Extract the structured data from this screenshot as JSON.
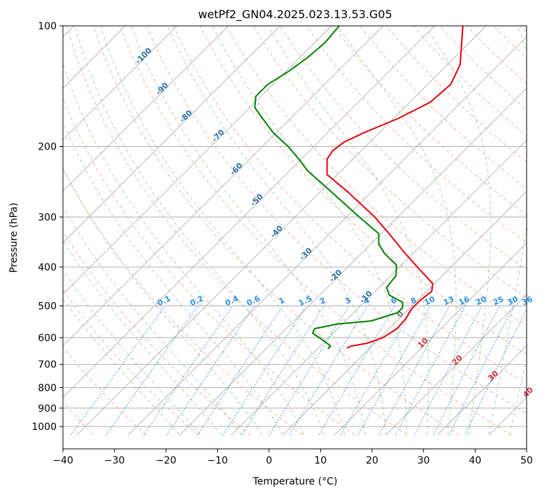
{
  "chart_data": {
    "type": "line",
    "subtype": "skew-T log-P diagram",
    "title": "wetPf2_GN04.2025.023.13.53.G05",
    "xlabel": "Temperature (°C)",
    "ylabel": "Pressure (hPa)",
    "xlim": [
      -40,
      50
    ],
    "ylim_hpa": [
      1050,
      100
    ],
    "y_scale": "log",
    "x_ticks": [
      -40,
      -30,
      -20,
      -10,
      0,
      10,
      20,
      30,
      40,
      50
    ],
    "x_tick_labels": [
      "−40",
      "−30",
      "−20",
      "−10",
      "0",
      "10",
      "20",
      "30",
      "40",
      "50"
    ],
    "y_ticks": [
      100,
      200,
      300,
      400,
      500,
      600,
      700,
      800,
      900,
      1000
    ],
    "y_tick_labels": [
      "100",
      "200",
      "300",
      "400",
      "500",
      "600",
      "700",
      "800",
      "900",
      "1000"
    ],
    "grid": true,
    "series": [
      {
        "role": "temperature",
        "color": "#e8000b",
        "points": [
          {
            "p": 637,
            "t": -4.5
          },
          {
            "p": 630,
            "t": -4.0
          },
          {
            "p": 620,
            "t": -1.5
          },
          {
            "p": 600,
            "t": 0.5
          },
          {
            "p": 570,
            "t": 1.5
          },
          {
            "p": 540,
            "t": 1.3
          },
          {
            "p": 510,
            "t": 0.5
          },
          {
            "p": 485,
            "t": 0.5
          },
          {
            "p": 460,
            "t": 1.0
          },
          {
            "p": 440,
            "t": -0.3
          },
          {
            "p": 400,
            "t": -6.5
          },
          {
            "p": 370,
            "t": -11.5
          },
          {
            "p": 330,
            "t": -18.5
          },
          {
            "p": 300,
            "t": -24.5
          },
          {
            "p": 260,
            "t": -34.5
          },
          {
            "p": 235,
            "t": -42.0
          },
          {
            "p": 215,
            "t": -45.0
          },
          {
            "p": 205,
            "t": -45.5
          },
          {
            "p": 195,
            "t": -45.0
          },
          {
            "p": 185,
            "t": -43.0
          },
          {
            "p": 170,
            "t": -39.0
          },
          {
            "p": 155,
            "t": -36.0
          },
          {
            "p": 140,
            "t": -35.5
          },
          {
            "p": 125,
            "t": -37.5
          },
          {
            "p": 110,
            "t": -41.5
          },
          {
            "p": 100,
            "t": -44.5
          }
        ]
      },
      {
        "role": "dewpoint",
        "color": "#008000",
        "points": [
          {
            "p": 640,
            "t": -8.0
          },
          {
            "p": 630,
            "t": -8.0
          },
          {
            "p": 610,
            "t": -10.5
          },
          {
            "p": 585,
            "t": -14.0
          },
          {
            "p": 570,
            "t": -14.5
          },
          {
            "p": 555,
            "t": -11.0
          },
          {
            "p": 545,
            "t": -5.0
          },
          {
            "p": 520,
            "t": -1.5
          },
          {
            "p": 505,
            "t": -1.5
          },
          {
            "p": 490,
            "t": -2.5
          },
          {
            "p": 470,
            "t": -6.5
          },
          {
            "p": 450,
            "t": -8.5
          },
          {
            "p": 420,
            "t": -9.0
          },
          {
            "p": 395,
            "t": -11.0
          },
          {
            "p": 370,
            "t": -15.5
          },
          {
            "p": 350,
            "t": -18.5
          },
          {
            "p": 330,
            "t": -20.5
          },
          {
            "p": 300,
            "t": -27.5
          },
          {
            "p": 270,
            "t": -35.0
          },
          {
            "p": 250,
            "t": -40.5
          },
          {
            "p": 230,
            "t": -46.5
          },
          {
            "p": 215,
            "t": -50.5
          },
          {
            "p": 200,
            "t": -55.0
          },
          {
            "p": 185,
            "t": -60.5
          },
          {
            "p": 170,
            "t": -65.5
          },
          {
            "p": 160,
            "t": -69.0
          },
          {
            "p": 150,
            "t": -71.0
          },
          {
            "p": 140,
            "t": -71.0
          },
          {
            "p": 130,
            "t": -69.5
          },
          {
            "p": 120,
            "t": -68.5
          },
          {
            "p": 110,
            "t": -68.0
          },
          {
            "p": 100,
            "t": -68.5
          }
        ]
      }
    ],
    "dry_adiabat_labels": [
      "-100",
      "-90",
      "-80",
      "-70",
      "-60",
      "-50",
      "-40",
      "-30",
      "-20",
      "-10"
    ],
    "moist_adiabat_labels": [
      "0",
      "10",
      "20",
      "30",
      "40"
    ],
    "mixing_ratio_labels": [
      "0.1",
      "0.2",
      "0.4",
      "0.6",
      "1",
      "1.5",
      "2",
      "3",
      "4",
      "6",
      "8",
      "10",
      "13",
      "16",
      "20",
      "25",
      "30",
      "36"
    ],
    "colors": {
      "temperature": "#e8000b",
      "dewpoint": "#008000",
      "dry_adiabat": "#f4a08a",
      "moist_adiabat": "#9ccf9c",
      "mixing_ratio": "#2a8fe6",
      "isotherm_grid": "#b0b0b0"
    }
  }
}
